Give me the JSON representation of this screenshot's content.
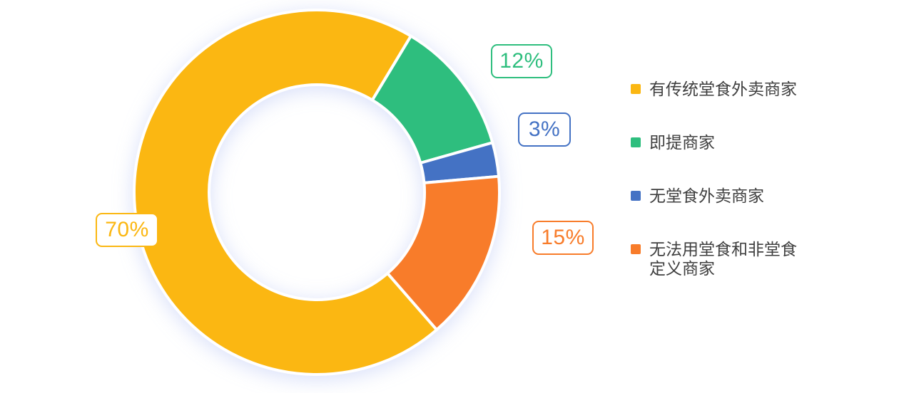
{
  "chart_data": {
    "type": "pie",
    "variant": "donut",
    "title": "",
    "unit": "%",
    "legend_position": "right",
    "start_angle_deg": 31,
    "clockwise": true,
    "inner_radius_ratio": 0.59,
    "draw_order": [
      1,
      2,
      3,
      0
    ],
    "segments": [
      {
        "label": "有传统堂食外卖商家",
        "value": 70,
        "color": "#FBB712",
        "callout": "70%"
      },
      {
        "label": "即提商家",
        "value": 12,
        "color": "#2EBE7E",
        "callout": "12%"
      },
      {
        "label": "无堂食外卖商家",
        "value": 3,
        "color": "#4472C4",
        "callout": "3%"
      },
      {
        "label": "无法用堂食和非堂食定义商家",
        "value": 15,
        "color": "#F87C2A",
        "callout": "15%"
      }
    ]
  }
}
